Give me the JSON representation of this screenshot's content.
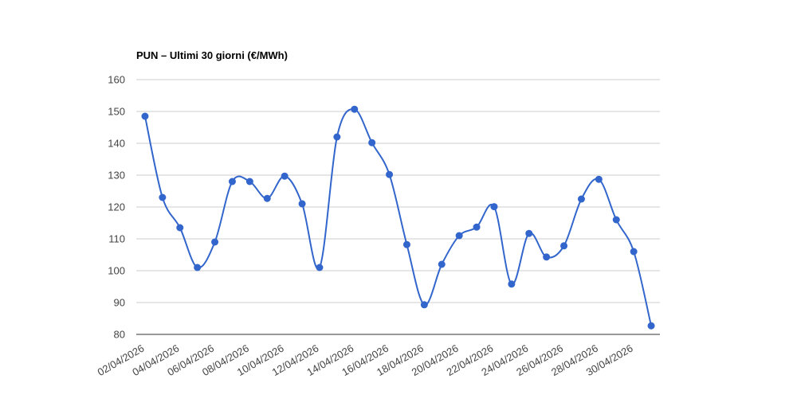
{
  "chart_data": {
    "type": "line",
    "title": "PUN – Ultimi 30 giorni (€/MWh)",
    "categories": [
      "02/04/2026",
      null,
      "04/04/2026",
      null,
      "06/04/2026",
      null,
      "08/04/2026",
      null,
      "10/04/2026",
      null,
      "12/04/2026",
      null,
      "14/04/2026",
      null,
      "16/04/2026",
      null,
      "18/04/2026",
      null,
      "20/04/2026",
      null,
      "22/04/2026",
      null,
      "24/04/2026",
      null,
      "26/04/2026",
      null,
      "28/04/2026",
      null,
      "30/04/2026",
      null
    ],
    "series": [
      {
        "color": "#3366cc",
        "values": [
          148.5,
          123,
          113.5,
          101,
          109,
          128,
          128,
          122.7,
          129.7,
          121,
          101,
          142,
          150.7,
          140.2,
          130.2,
          108.2,
          89.3,
          102,
          111,
          113.7,
          120.1,
          95.8,
          111.7,
          104.3,
          107.8,
          122.5,
          128.7,
          116,
          106,
          82.7
        ]
      }
    ],
    "ylim": [
      80,
      160
    ],
    "yticks": [
      80,
      90,
      100,
      110,
      120,
      130,
      140,
      150,
      160
    ],
    "grid": true,
    "smooth": true
  }
}
